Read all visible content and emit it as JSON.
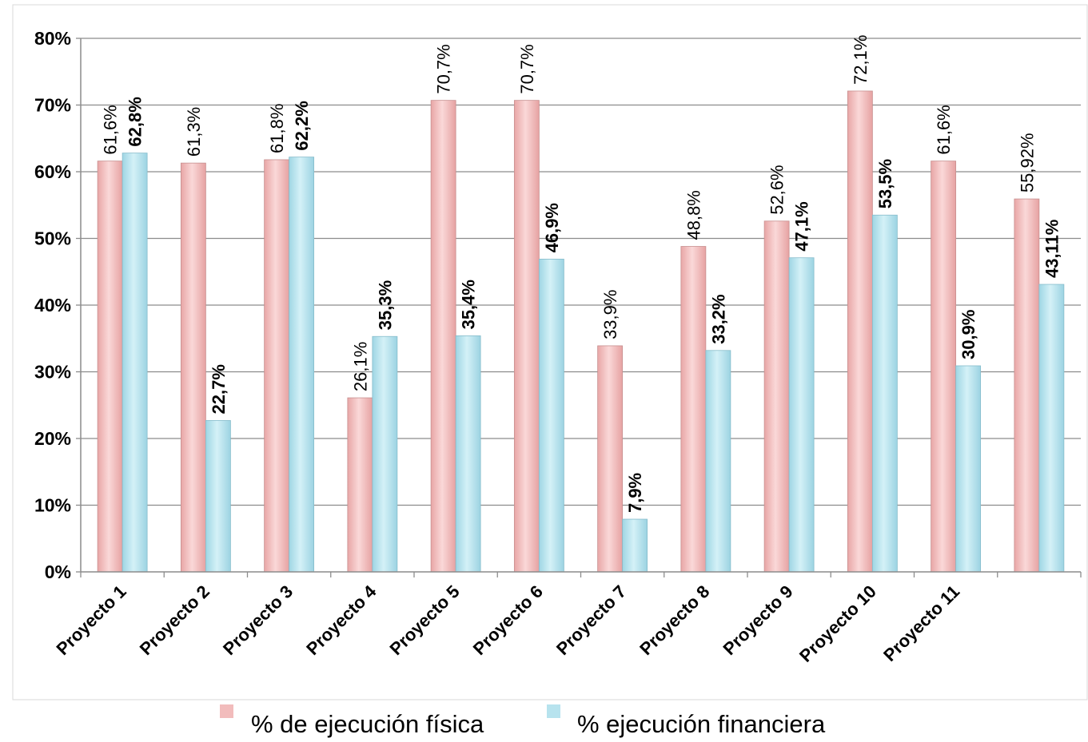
{
  "chart_data": {
    "type": "bar",
    "categories": [
      "Proyecto 1",
      "Proyecto 2",
      "Proyecto 3",
      "Proyecto 4",
      "Proyecto 5",
      "Proyecto 6",
      "Proyecto 7",
      "Proyecto 8",
      "Proyecto 9",
      "Proyecto 10",
      "Proyecto 11",
      ""
    ],
    "series": [
      {
        "name": "% de ejecución física",
        "color": "#f2bcbc",
        "values": [
          61.6,
          61.3,
          61.8,
          26.1,
          70.7,
          70.7,
          33.9,
          48.8,
          52.6,
          72.1,
          61.6,
          55.92
        ],
        "labels": [
          "61,6%",
          "61,3%",
          "61,8%",
          "26,1%",
          "70,7%",
          "70,7%",
          "33,9%",
          "48,8%",
          "52,6%",
          "72,1%",
          "61,6%",
          "55,92%"
        ]
      },
      {
        "name": "% ejecución financiera",
        "color": "#b7e3ee",
        "values": [
          62.8,
          22.7,
          62.2,
          35.3,
          35.4,
          46.9,
          7.9,
          33.2,
          47.1,
          53.5,
          30.9,
          43.11
        ],
        "labels": [
          "62,8%",
          "22,7%",
          "62,2%",
          "35,3%",
          "35,4%",
          "46,9%",
          "7,9%",
          "33,2%",
          "47,1%",
          "53,5%",
          "30,9%",
          "43,11%"
        ]
      }
    ],
    "ylim": [
      0,
      80
    ],
    "yticks": [
      "0%",
      "10%",
      "20%",
      "30%",
      "40%",
      "50%",
      "60%",
      "70%",
      "80%"
    ],
    "legend_position": "bottom",
    "grid": true
  }
}
